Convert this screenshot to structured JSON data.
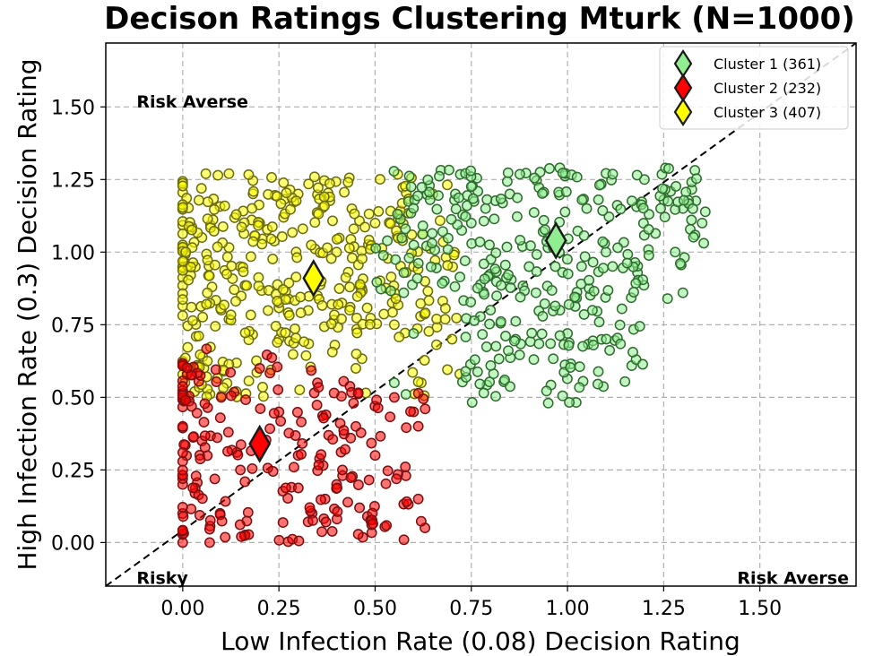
{
  "chart_data": {
    "type": "scatter",
    "title": "Decison Ratings Clustering Mturk (N=1000)",
    "xlabel": "Low Infection Rate (0.08) Decision Rating",
    "ylabel": "High Infection Rate (0.3) Decision Rating",
    "xlim": [
      -0.2,
      1.75
    ],
    "ylim": [
      -0.15,
      1.72
    ],
    "xticks": [
      0.0,
      0.25,
      0.5,
      0.75,
      1.0,
      1.25,
      1.5
    ],
    "xtick_labels": [
      "0.00",
      "0.25",
      "0.50",
      "0.75",
      "1.00",
      "1.25",
      "1.50"
    ],
    "yticks": [
      0.0,
      0.25,
      0.5,
      0.75,
      1.0,
      1.25,
      1.5
    ],
    "ytick_labels": [
      "0.00",
      "0.25",
      "0.50",
      "0.75",
      "1.00",
      "1.25",
      "1.50"
    ],
    "grid": true,
    "legend_position": "top-right",
    "reference_line": {
      "style": "dashed",
      "color": "#000000",
      "from": [
        -0.2,
        -0.15
      ],
      "to": [
        1.75,
        1.72
      ]
    },
    "annotations": [
      {
        "text": "Risk Averse",
        "x": -0.12,
        "y": 1.52
      },
      {
        "text": "Risky",
        "x": -0.12,
        "y": -0.12
      },
      {
        "text": "Risk Averse",
        "x": 1.35,
        "y": -0.12
      }
    ],
    "series": [
      {
        "name": "Cluster 1 (361)",
        "color": "#90ee90",
        "centroid": [
          0.97,
          1.04
        ],
        "region": {
          "x": [
            0.5,
            1.36
          ],
          "y": [
            0.48,
            1.29
          ]
        },
        "sample_points": [
          [
            0.55,
            0.55
          ],
          [
            0.6,
            0.72
          ],
          [
            0.68,
            0.9
          ],
          [
            0.75,
            1.1
          ],
          [
            0.8,
            0.8
          ],
          [
            0.85,
            1.2
          ],
          [
            0.9,
            0.95
          ],
          [
            0.95,
            1.05
          ],
          [
            1.0,
            0.72
          ],
          [
            1.05,
            1.15
          ],
          [
            1.1,
            1.0
          ],
          [
            1.2,
            1.25
          ],
          [
            1.25,
            1.18
          ],
          [
            1.3,
            1.15
          ],
          [
            1.35,
            1.1
          ],
          [
            0.98,
            1.29
          ],
          [
            0.95,
            0.48
          ],
          [
            0.58,
            0.51
          ],
          [
            1.3,
            0.86
          ],
          [
            1.26,
            0.84
          ]
        ]
      },
      {
        "name": "Cluster 2 (232)",
        "color": "#ff0000",
        "centroid": [
          0.2,
          0.34
        ],
        "region": {
          "x": [
            0.0,
            0.63
          ],
          "y": [
            0.0,
            0.67
          ]
        },
        "sample_points": [
          [
            0.0,
            0.0
          ],
          [
            0.0,
            0.1
          ],
          [
            0.0,
            0.2
          ],
          [
            0.05,
            0.35
          ],
          [
            0.1,
            0.5
          ],
          [
            0.15,
            0.25
          ],
          [
            0.2,
            0.6
          ],
          [
            0.25,
            0.45
          ],
          [
            0.3,
            0.3
          ],
          [
            0.35,
            0.55
          ],
          [
            0.4,
            0.2
          ],
          [
            0.45,
            0.4
          ],
          [
            0.5,
            0.3
          ],
          [
            0.55,
            0.5
          ],
          [
            0.6,
            0.45
          ],
          [
            0.63,
            0.46
          ],
          [
            0.07,
            0.0
          ],
          [
            0.48,
            0.09
          ],
          [
            0.58,
            0.23
          ],
          [
            0.37,
            0.15
          ]
        ]
      },
      {
        "name": "Cluster 3 (407)",
        "color": "#ffff00",
        "centroid": [
          0.34,
          0.91
        ],
        "region": {
          "x": [
            0.0,
            0.72
          ],
          "y": [
            0.48,
            1.27
          ]
        },
        "sample_points": [
          [
            0.0,
            1.15
          ],
          [
            0.0,
            0.95
          ],
          [
            0.05,
            1.05
          ],
          [
            0.1,
            0.8
          ],
          [
            0.12,
            1.27
          ],
          [
            0.15,
            0.95
          ],
          [
            0.2,
            1.1
          ],
          [
            0.25,
            0.7
          ],
          [
            0.3,
            1.2
          ],
          [
            0.35,
            0.85
          ],
          [
            0.4,
            1.0
          ],
          [
            0.45,
            0.6
          ],
          [
            0.5,
            1.1
          ],
          [
            0.55,
            0.75
          ],
          [
            0.6,
            0.95
          ],
          [
            0.65,
            1.2
          ],
          [
            0.7,
            0.7
          ],
          [
            0.72,
            0.58
          ],
          [
            0.62,
            0.55
          ],
          [
            0.06,
            1.27
          ]
        ]
      }
    ]
  }
}
